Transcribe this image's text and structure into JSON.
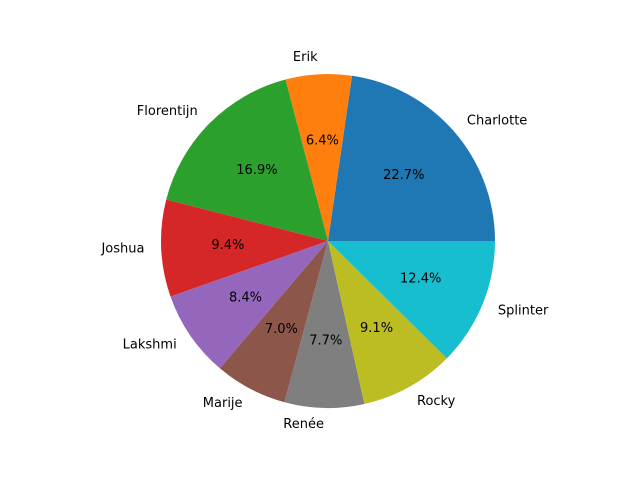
{
  "chart_data": {
    "type": "pie",
    "title": "",
    "start_angle_deg": 0,
    "direction": "counterclockwise",
    "slices": [
      {
        "label": "Charlotte",
        "value": 22.7,
        "pct_label": "22.7%",
        "color": "#1f77b4"
      },
      {
        "label": "Erik",
        "value": 6.4,
        "pct_label": "6.4%",
        "color": "#ff7f0e"
      },
      {
        "label": "Florentijn",
        "value": 16.9,
        "pct_label": "16.9%",
        "color": "#2ca02c"
      },
      {
        "label": "Joshua",
        "value": 9.4,
        "pct_label": "9.4%",
        "color": "#d62728"
      },
      {
        "label": "Lakshmi",
        "value": 8.4,
        "pct_label": "8.4%",
        "color": "#9467bd"
      },
      {
        "label": "Marije",
        "value": 7.0,
        "pct_label": "7.0%",
        "color": "#8c564b"
      },
      {
        "label": "Renée",
        "value": 7.7,
        "pct_label": "7.7%",
        "color": "#7f7f7f"
      },
      {
        "label": "Rocky",
        "value": 9.1,
        "pct_label": "9.1%",
        "color": "#bcbd22"
      },
      {
        "label": "Splinter",
        "value": 12.4,
        "pct_label": "12.4%",
        "color": "#17becf"
      }
    ]
  }
}
